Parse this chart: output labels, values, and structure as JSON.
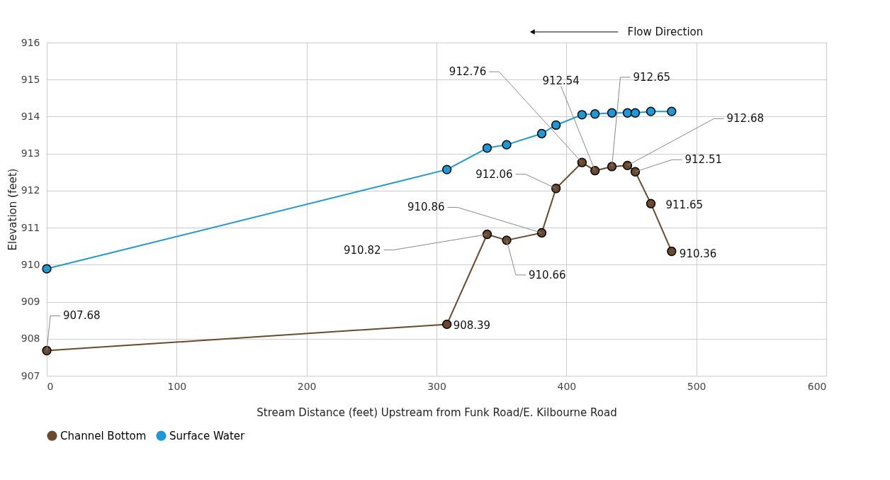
{
  "chart_data": {
    "type": "line",
    "xlabel": "Stream Distance (feet) Upstream from Funk Road/E. Kilbourne Road",
    "ylabel": "Elevation (feet)",
    "x": [
      0,
      308,
      339,
      354,
      381,
      392,
      412,
      422,
      435,
      447,
      453,
      465,
      481
    ],
    "series": [
      {
        "name": "Channel Bottom",
        "color": "#6b4a2b",
        "values": [
          907.68,
          908.39,
          910.82,
          910.66,
          910.86,
          912.06,
          912.76,
          912.54,
          912.65,
          912.68,
          912.51,
          911.65,
          910.36
        ],
        "value_labels": [
          "907.68",
          "908.39",
          "910.82",
          "910.66",
          "910.86",
          "912.06",
          "912.76",
          "912.54",
          "912.65",
          "912.68",
          "912.51",
          "911.65",
          "910.36"
        ]
      },
      {
        "name": "Surface Water",
        "color": "#1a9ad6",
        "values": [
          909.89,
          912.57,
          913.15,
          913.24,
          913.54,
          913.77,
          914.05,
          914.07,
          914.1,
          914.1,
          914.1,
          914.14,
          914.14
        ]
      }
    ],
    "xlim": [
      0,
      600
    ],
    "xticks": [
      0,
      100,
      200,
      300,
      400,
      500,
      600
    ],
    "ylim": [
      907,
      916
    ],
    "yticks": [
      907,
      908,
      909,
      910,
      911,
      912,
      913,
      914,
      915,
      916
    ],
    "grid": true,
    "legend": "bottom",
    "marker": "circle",
    "line_style": "solid",
    "annotations": [
      "Flow Direction"
    ]
  }
}
